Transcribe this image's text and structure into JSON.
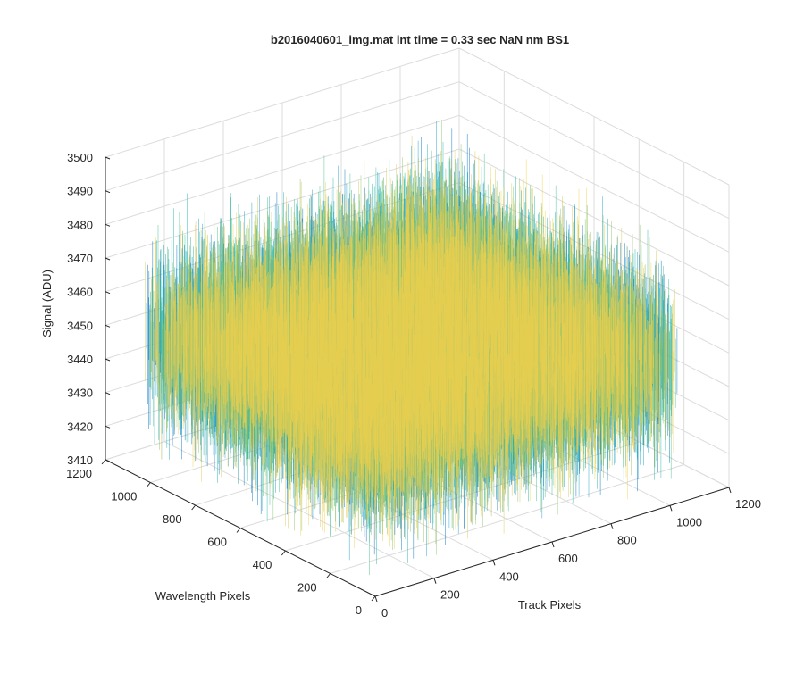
{
  "chart_data": {
    "type": "surface",
    "title": "b2016040601_img.mat int time = 0.33 sec  NaN nm BS1",
    "xlabel": "Track Pixels",
    "ylabel": "Wavelength Pixels",
    "zlabel": "Signal (ADU)",
    "xlim": [
      0,
      1200
    ],
    "ylim": [
      0,
      1200
    ],
    "zlim": [
      3410,
      3500
    ],
    "xticks": [
      "0",
      "200",
      "400",
      "600",
      "800",
      "1000",
      "1200"
    ],
    "yticks": [
      "0",
      "200",
      "400",
      "600",
      "800",
      "1000",
      "1200"
    ],
    "zticks": [
      "3410",
      "3420",
      "3430",
      "3440",
      "3450",
      "3460",
      "3470",
      "3480",
      "3490",
      "3500"
    ],
    "surface": {
      "x_range": [
        0,
        1024
      ],
      "y_range": [
        0,
        1024
      ],
      "mean_signal": 3452,
      "noise_range": [
        3415,
        3495
      ]
    },
    "grid": true,
    "colormap": [
      "#0072bd",
      "#1a9ec7",
      "#20b2aa",
      "#44bf8c",
      "#8fc26a",
      "#d8c85a",
      "#f2d04a"
    ]
  }
}
